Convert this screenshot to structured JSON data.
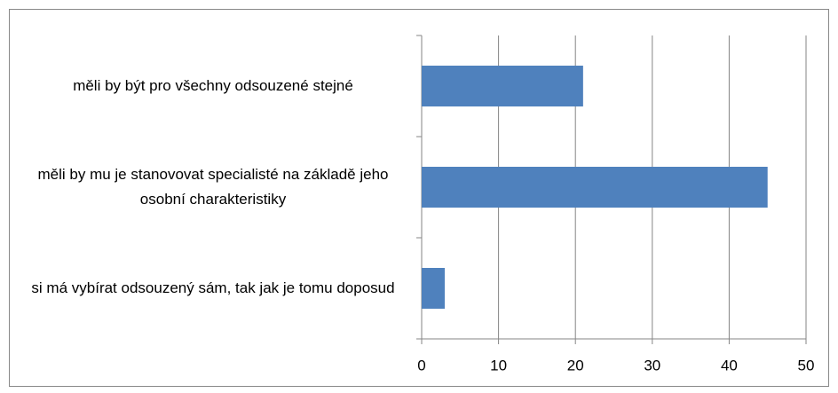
{
  "chart_data": {
    "type": "bar",
    "orientation": "horizontal",
    "categories": [
      "měli by být pro všechny odsouzené stejné",
      "měli by mu je stanovovat specialisté na základě jeho osobní charakteristiky",
      "si má vybírat odsouzený sám, tak jak je tomu doposud"
    ],
    "values": [
      21,
      45,
      3
    ],
    "color": "#4f81bd",
    "xlim": [
      0,
      50
    ],
    "xticks": [
      0,
      10,
      20,
      30,
      40,
      50
    ],
    "grid": true
  }
}
